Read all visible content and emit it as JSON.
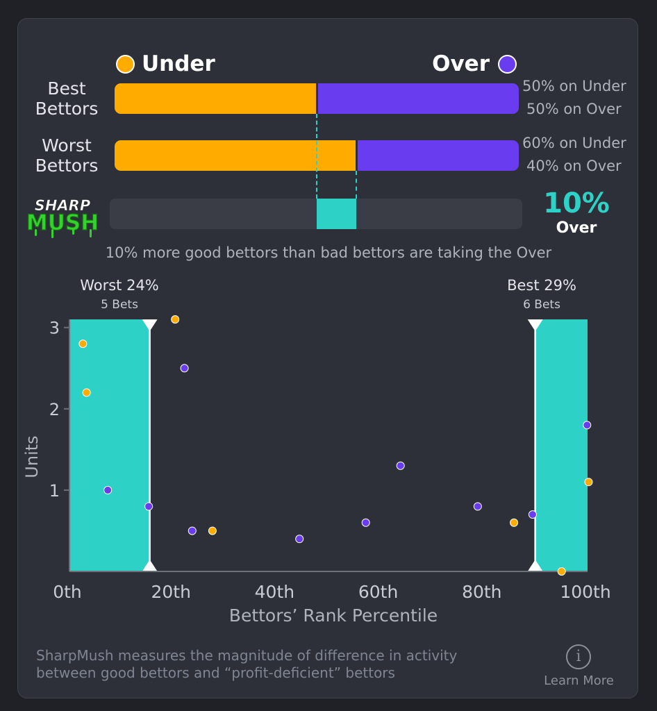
{
  "legend": {
    "under_label": "Under",
    "over_label": "Over"
  },
  "colors": {
    "under": "#ffab00",
    "over": "#6a3cf0",
    "accent": "#2ed1c5"
  },
  "rows": [
    {
      "label_line1": "Best",
      "label_line2": "Bettors",
      "under_pct": 50,
      "over_pct": 50,
      "under_text": "50% on Under",
      "over_text": "50% on Over"
    },
    {
      "label_line1": "Worst",
      "label_line2": "Bettors",
      "under_pct": 60,
      "over_pct": 40,
      "under_text": "60% on Under",
      "over_text": "40% on Over"
    }
  ],
  "logo": {
    "line1": "SHARP",
    "line2": "MUSH"
  },
  "difference": {
    "value_text": "10%",
    "side": "Over",
    "value": 10
  },
  "summary_text": "10% more good bettors than bad bettors are taking the Over",
  "chart_data": {
    "type": "scatter",
    "xlabel": "Bettors’ Rank Percentile",
    "ylabel": "Units",
    "xlim": [
      0,
      100
    ],
    "ylim": [
      0.0,
      3.1
    ],
    "x_ticks": [
      {
        "value": 0,
        "label": "0th"
      },
      {
        "value": 20,
        "label": "20th"
      },
      {
        "value": 40,
        "label": "40th"
      },
      {
        "value": 60,
        "label": "60th"
      },
      {
        "value": 80,
        "label": "80th"
      },
      {
        "value": 100,
        "label": "100th"
      }
    ],
    "y_ticks": [
      {
        "value": 1,
        "label": "1"
      },
      {
        "value": 2,
        "label": "2"
      },
      {
        "value": 3,
        "label": "3"
      }
    ],
    "worst_band": {
      "from": 0,
      "to": 15.5,
      "title": "Worst 24%",
      "subtitle": "5 Bets"
    },
    "best_band": {
      "from": 89.9,
      "to": 100,
      "title": "Best 29%",
      "subtitle": "6 Bets"
    },
    "series": [
      {
        "side": "under",
        "points": [
          [
            2.6,
            2.8
          ],
          [
            3.3,
            2.2
          ],
          [
            20.4,
            3.1
          ],
          [
            27.6,
            0.5
          ],
          [
            85.8,
            0.6
          ],
          [
            95.0,
            0.0
          ],
          [
            100.2,
            1.1
          ]
        ]
      },
      {
        "side": "over",
        "points": [
          [
            7.4,
            1.0
          ],
          [
            15.3,
            0.8
          ],
          [
            22.2,
            2.5
          ],
          [
            23.7,
            0.5
          ],
          [
            44.4,
            0.4
          ],
          [
            57.2,
            0.6
          ],
          [
            63.9,
            1.3
          ],
          [
            78.8,
            0.8
          ],
          [
            89.4,
            0.7
          ],
          [
            99.9,
            1.8
          ]
        ]
      }
    ]
  },
  "footer": {
    "line1": "SharpMush measures the magnitude of difference in activity",
    "line2": "between good bettors and “profit-deficient” bettors",
    "info_glyph": "i",
    "learn_more": "Learn More"
  }
}
